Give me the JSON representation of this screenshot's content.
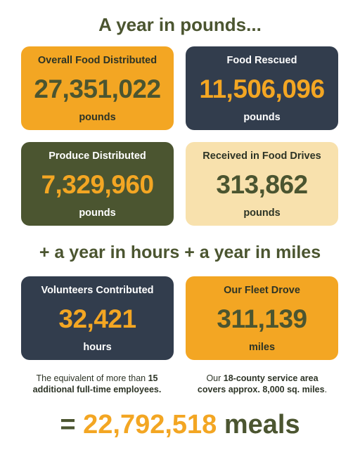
{
  "title": "A year in pounds...",
  "cards": [
    {
      "label": "Overall Food Distributed",
      "number": "27,351,022",
      "unit": "pounds"
    },
    {
      "label": "Food Rescued",
      "number": "11,506,096",
      "unit": "pounds"
    },
    {
      "label": "Produce Distributed",
      "number": "7,329,960",
      "unit": "pounds"
    },
    {
      "label": "Received in Food Drives",
      "number": "313,862",
      "unit": "pounds"
    },
    {
      "label": "Volunteers Contributed",
      "number": "32,421",
      "unit": "hours"
    },
    {
      "label": "Our Fleet Drove",
      "number": "311,139",
      "unit": "miles"
    }
  ],
  "subtitle": "+ a year in hours + a year in miles",
  "notes": [
    [
      "The equivalent of more than ",
      "15",
      "additional full-time employees."
    ],
    [
      "Our ",
      "18-county service area",
      "covers approx. 8,000 sq. miles",
      "."
    ]
  ],
  "total": {
    "prefix": "=",
    "number": "22,792,518",
    "suffix": "meals"
  }
}
